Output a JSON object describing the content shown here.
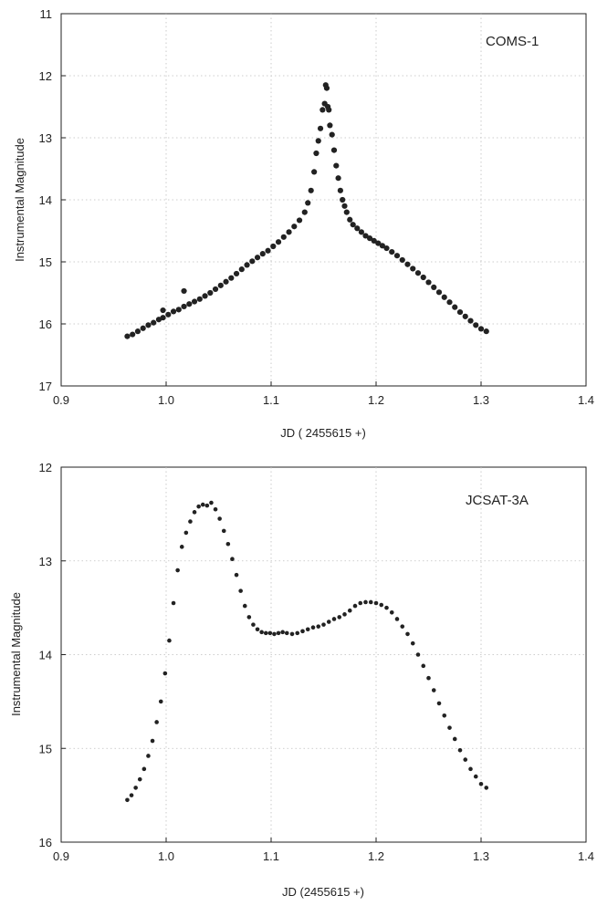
{
  "chart_data": [
    {
      "type": "scatter",
      "annotation": "COMS-1",
      "xlabel": "JD ( 2455615 +)",
      "ylabel": "Instrumental Magnitude",
      "xlim": [
        0.9,
        1.4
      ],
      "ylim": [
        17,
        11
      ],
      "y_inverted": true,
      "xticks": [
        "0.9",
        "1.0",
        "1.1",
        "1.2",
        "1.3",
        "1.4"
      ],
      "yticks": [
        "11",
        "12",
        "13",
        "14",
        "15",
        "16",
        "17"
      ],
      "grid": true,
      "legend": "none",
      "marker_color": "#222222",
      "x": [
        0.963,
        0.968,
        0.973,
        0.978,
        0.983,
        0.988,
        0.993,
        0.997,
        1.002,
        1.007,
        1.012,
        1.017,
        1.022,
        1.027,
        1.032,
        1.037,
        1.042,
        1.047,
        1.052,
        1.057,
        1.062,
        1.067,
        1.072,
        1.077,
        1.082,
        1.087,
        1.092,
        1.097,
        1.102,
        1.107,
        1.112,
        1.117,
        1.122,
        1.127,
        1.132,
        1.135,
        1.138,
        1.141,
        1.143,
        1.145,
        1.147,
        1.149,
        1.151,
        1.152,
        1.153,
        1.154,
        1.155,
        1.156,
        1.158,
        1.16,
        1.162,
        1.164,
        1.166,
        1.168,
        1.17,
        1.172,
        1.175,
        1.178,
        1.182,
        1.186,
        1.19,
        1.194,
        1.198,
        1.202,
        1.206,
        1.21,
        1.215,
        1.22,
        1.225,
        1.23,
        1.235,
        1.24,
        1.245,
        1.25,
        1.255,
        1.26,
        1.265,
        1.27,
        1.275,
        1.28,
        1.285,
        1.29,
        1.295,
        1.3,
        1.305,
        0.997,
        1.017
      ],
      "y": [
        16.2,
        16.17,
        16.12,
        16.07,
        16.02,
        15.98,
        15.93,
        15.9,
        15.85,
        15.8,
        15.77,
        15.72,
        15.68,
        15.64,
        15.6,
        15.55,
        15.5,
        15.44,
        15.38,
        15.32,
        15.26,
        15.19,
        15.12,
        15.05,
        14.99,
        14.93,
        14.87,
        14.82,
        14.75,
        14.68,
        14.6,
        14.52,
        14.43,
        14.33,
        14.2,
        14.05,
        13.85,
        13.55,
        13.25,
        13.05,
        12.85,
        12.55,
        12.45,
        12.15,
        12.2,
        12.5,
        12.55,
        12.8,
        12.95,
        13.2,
        13.45,
        13.65,
        13.85,
        14.0,
        14.1,
        14.2,
        14.32,
        14.4,
        14.46,
        14.52,
        14.58,
        14.62,
        14.66,
        14.7,
        14.74,
        14.78,
        14.84,
        14.9,
        14.97,
        15.04,
        15.11,
        15.18,
        15.25,
        15.33,
        15.41,
        15.49,
        15.57,
        15.65,
        15.73,
        15.81,
        15.88,
        15.95,
        16.02,
        16.08,
        16.12,
        15.78,
        15.47
      ]
    },
    {
      "type": "scatter",
      "annotation": "JCSAT-3A",
      "xlabel": "JD (2455615 +)",
      "ylabel": "Instrumental Magnitude",
      "xlim": [
        0.9,
        1.4
      ],
      "ylim": [
        16,
        12
      ],
      "y_inverted": true,
      "xticks": [
        "0.9",
        "1.0",
        "1.1",
        "1.2",
        "1.3",
        "1.4"
      ],
      "yticks": [
        "12",
        "13",
        "14",
        "15",
        "16"
      ],
      "grid": true,
      "legend": "none",
      "marker_color": "#222222",
      "x": [
        0.963,
        0.967,
        0.971,
        0.975,
        0.979,
        0.983,
        0.987,
        0.991,
        0.995,
        0.999,
        1.003,
        1.007,
        1.011,
        1.015,
        1.019,
        1.023,
        1.027,
        1.031,
        1.035,
        1.039,
        1.043,
        1.047,
        1.051,
        1.055,
        1.059,
        1.063,
        1.067,
        1.071,
        1.075,
        1.079,
        1.083,
        1.087,
        1.091,
        1.095,
        1.099,
        1.103,
        1.107,
        1.111,
        1.115,
        1.12,
        1.125,
        1.13,
        1.135,
        1.14,
        1.145,
        1.15,
        1.155,
        1.16,
        1.165,
        1.17,
        1.175,
        1.18,
        1.185,
        1.19,
        1.195,
        1.2,
        1.205,
        1.21,
        1.215,
        1.22,
        1.225,
        1.23,
        1.235,
        1.24,
        1.245,
        1.25,
        1.255,
        1.26,
        1.265,
        1.27,
        1.275,
        1.28,
        1.285,
        1.29,
        1.295,
        1.3,
        1.305
      ],
      "y": [
        15.55,
        15.5,
        15.42,
        15.33,
        15.22,
        15.08,
        14.92,
        14.72,
        14.5,
        14.2,
        13.85,
        13.45,
        13.1,
        12.85,
        12.7,
        12.58,
        12.48,
        12.42,
        12.4,
        12.41,
        12.38,
        12.45,
        12.55,
        12.68,
        12.82,
        12.98,
        13.15,
        13.32,
        13.48,
        13.6,
        13.68,
        13.73,
        13.76,
        13.77,
        13.77,
        13.78,
        13.77,
        13.76,
        13.77,
        13.78,
        13.77,
        13.75,
        13.73,
        13.71,
        13.7,
        13.68,
        13.65,
        13.62,
        13.6,
        13.57,
        13.53,
        13.48,
        13.45,
        13.44,
        13.44,
        13.45,
        13.47,
        13.5,
        13.55,
        13.62,
        13.7,
        13.78,
        13.88,
        14.0,
        14.12,
        14.25,
        14.38,
        14.52,
        14.65,
        14.78,
        14.9,
        15.02,
        15.12,
        15.22,
        15.3,
        15.38,
        15.42
      ]
    }
  ]
}
